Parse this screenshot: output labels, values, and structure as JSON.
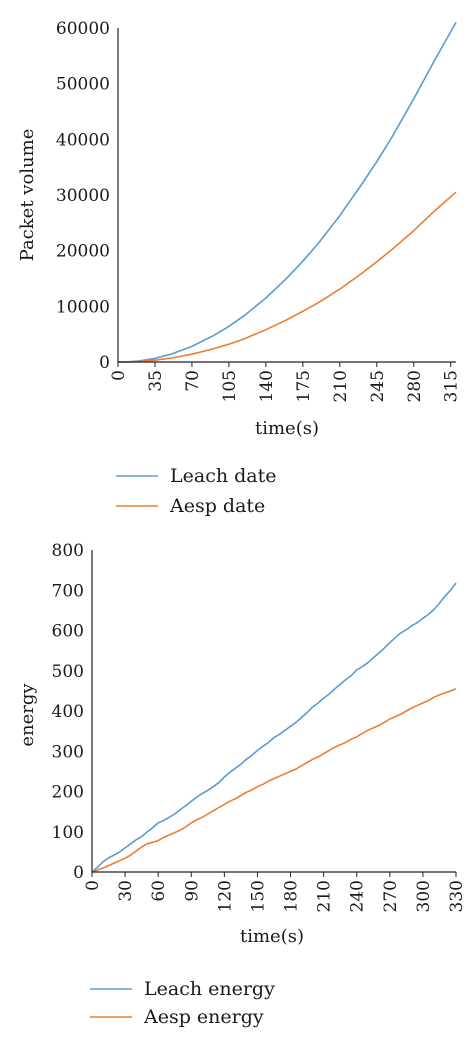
{
  "chart_data": [
    {
      "type": "line",
      "title": "",
      "xlabel": "time(s)",
      "ylabel": "Packet volume",
      "xlim": [
        0,
        320
      ],
      "ylim": [
        0,
        60000
      ],
      "x_ticks": [
        "0",
        "35",
        "70",
        "105",
        "140",
        "175",
        "210",
        "245",
        "280",
        "315"
      ],
      "y_ticks": [
        "0",
        "10000",
        "20000",
        "30000",
        "40000",
        "50000",
        "60000"
      ],
      "grid": false,
      "legend_position": "bottom",
      "x": [
        0,
        10,
        20,
        35,
        50,
        70,
        90,
        105,
        120,
        140,
        160,
        175,
        190,
        210,
        230,
        245,
        260,
        280,
        300,
        320
      ],
      "series": [
        {
          "name": "Leach date",
          "color": "#5b9bd5",
          "values": [
            0,
            40,
            200,
            650,
            1400,
            2800,
            4700,
            6400,
            8400,
            11500,
            15100,
            18100,
            21400,
            26300,
            31700,
            36000,
            40600,
            47300,
            54300,
            61000
          ]
        },
        {
          "name": "Aesp date",
          "color": "#ed7d31",
          "values": [
            0,
            20,
            100,
            330,
            700,
            1400,
            2350,
            3200,
            4200,
            5800,
            7600,
            9100,
            10700,
            13100,
            15800,
            18000,
            20300,
            23600,
            27200,
            30500
          ]
        }
      ]
    },
    {
      "type": "line",
      "title": "",
      "xlabel": "time(s)",
      "ylabel": "energy",
      "xlim": [
        0,
        330
      ],
      "ylim": [
        0,
        800
      ],
      "x_ticks": [
        "0",
        "30",
        "60",
        "90",
        "120",
        "150",
        "180",
        "210",
        "240",
        "270",
        "300",
        "330"
      ],
      "y_ticks": [
        "0",
        "100",
        "200",
        "300",
        "400",
        "500",
        "600",
        "700",
        "800"
      ],
      "grid": false,
      "legend_position": "bottom",
      "x": [
        0,
        5,
        10,
        15,
        20,
        25,
        30,
        35,
        40,
        45,
        50,
        55,
        60,
        65,
        70,
        75,
        80,
        85,
        90,
        95,
        100,
        105,
        110,
        115,
        120,
        125,
        130,
        135,
        140,
        145,
        150,
        155,
        160,
        165,
        170,
        175,
        180,
        185,
        190,
        195,
        200,
        205,
        210,
        215,
        220,
        225,
        230,
        235,
        240,
        245,
        250,
        255,
        260,
        265,
        270,
        275,
        280,
        285,
        290,
        295,
        300,
        305,
        310,
        315,
        320,
        325,
        330
      ],
      "series": [
        {
          "name": "Leach energy",
          "color": "#5b9bd5",
          "values": [
            0,
            12,
            25,
            35,
            42,
            50,
            60,
            70,
            80,
            88,
            100,
            110,
            122,
            128,
            136,
            144,
            155,
            165,
            176,
            186,
            195,
            203,
            212,
            222,
            236,
            248,
            258,
            268,
            280,
            290,
            302,
            312,
            322,
            334,
            342,
            352,
            362,
            372,
            384,
            396,
            410,
            420,
            432,
            442,
            455,
            466,
            478,
            488,
            502,
            510,
            520,
            532,
            544,
            556,
            570,
            582,
            594,
            602,
            612,
            620,
            630,
            640,
            652,
            668,
            685,
            700,
            718
          ]
        },
        {
          "name": "Aesp energy",
          "color": "#ed7d31",
          "values": [
            0,
            5,
            10,
            16,
            22,
            28,
            34,
            42,
            52,
            62,
            70,
            74,
            78,
            86,
            92,
            98,
            104,
            112,
            122,
            130,
            136,
            144,
            152,
            160,
            168,
            176,
            182,
            190,
            198,
            204,
            212,
            218,
            226,
            232,
            238,
            244,
            250,
            256,
            264,
            272,
            280,
            286,
            294,
            302,
            310,
            316,
            322,
            330,
            336,
            344,
            352,
            358,
            364,
            372,
            380,
            386,
            392,
            400,
            408,
            414,
            420,
            426,
            434,
            440,
            445,
            450,
            455
          ]
        }
      ]
    }
  ]
}
